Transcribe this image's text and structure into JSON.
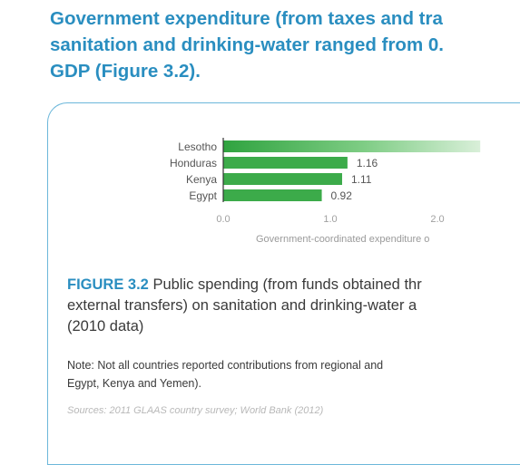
{
  "headline": {
    "line1": "Government expenditure (from taxes and tra",
    "line2": "sanitation and drinking-water ranged from 0.",
    "line3": "GDP (Figure 3.2)."
  },
  "chart_data": {
    "type": "bar",
    "orientation": "horizontal",
    "categories": [
      "Lesotho",
      "Honduras",
      "Kenya",
      "Egypt"
    ],
    "values": [
      2.4,
      1.16,
      1.11,
      0.92
    ],
    "data_labels": [
      "",
      "1.16",
      "1.11",
      "0.92"
    ],
    "x_ticks": [
      "0.0",
      "1.0",
      "2.0"
    ],
    "xlim": [
      0,
      2.4
    ],
    "xlabel": "Government-coordinated expenditure o",
    "grid": false,
    "bar_color": "#3cab4a"
  },
  "caption": {
    "label": "FIGURE 3.2",
    "line1_text": " Public spending (from funds obtained thr",
    "line2": "external transfers) on sanitation and drinking-water a",
    "line3": "(2010 data)"
  },
  "note": {
    "line1": "Note: Not all countries reported contributions from regional and",
    "line2": "Egypt, Kenya and Yemen)."
  },
  "sources": "Sources: 2011 GLAAS country survey; World Bank (2012)"
}
